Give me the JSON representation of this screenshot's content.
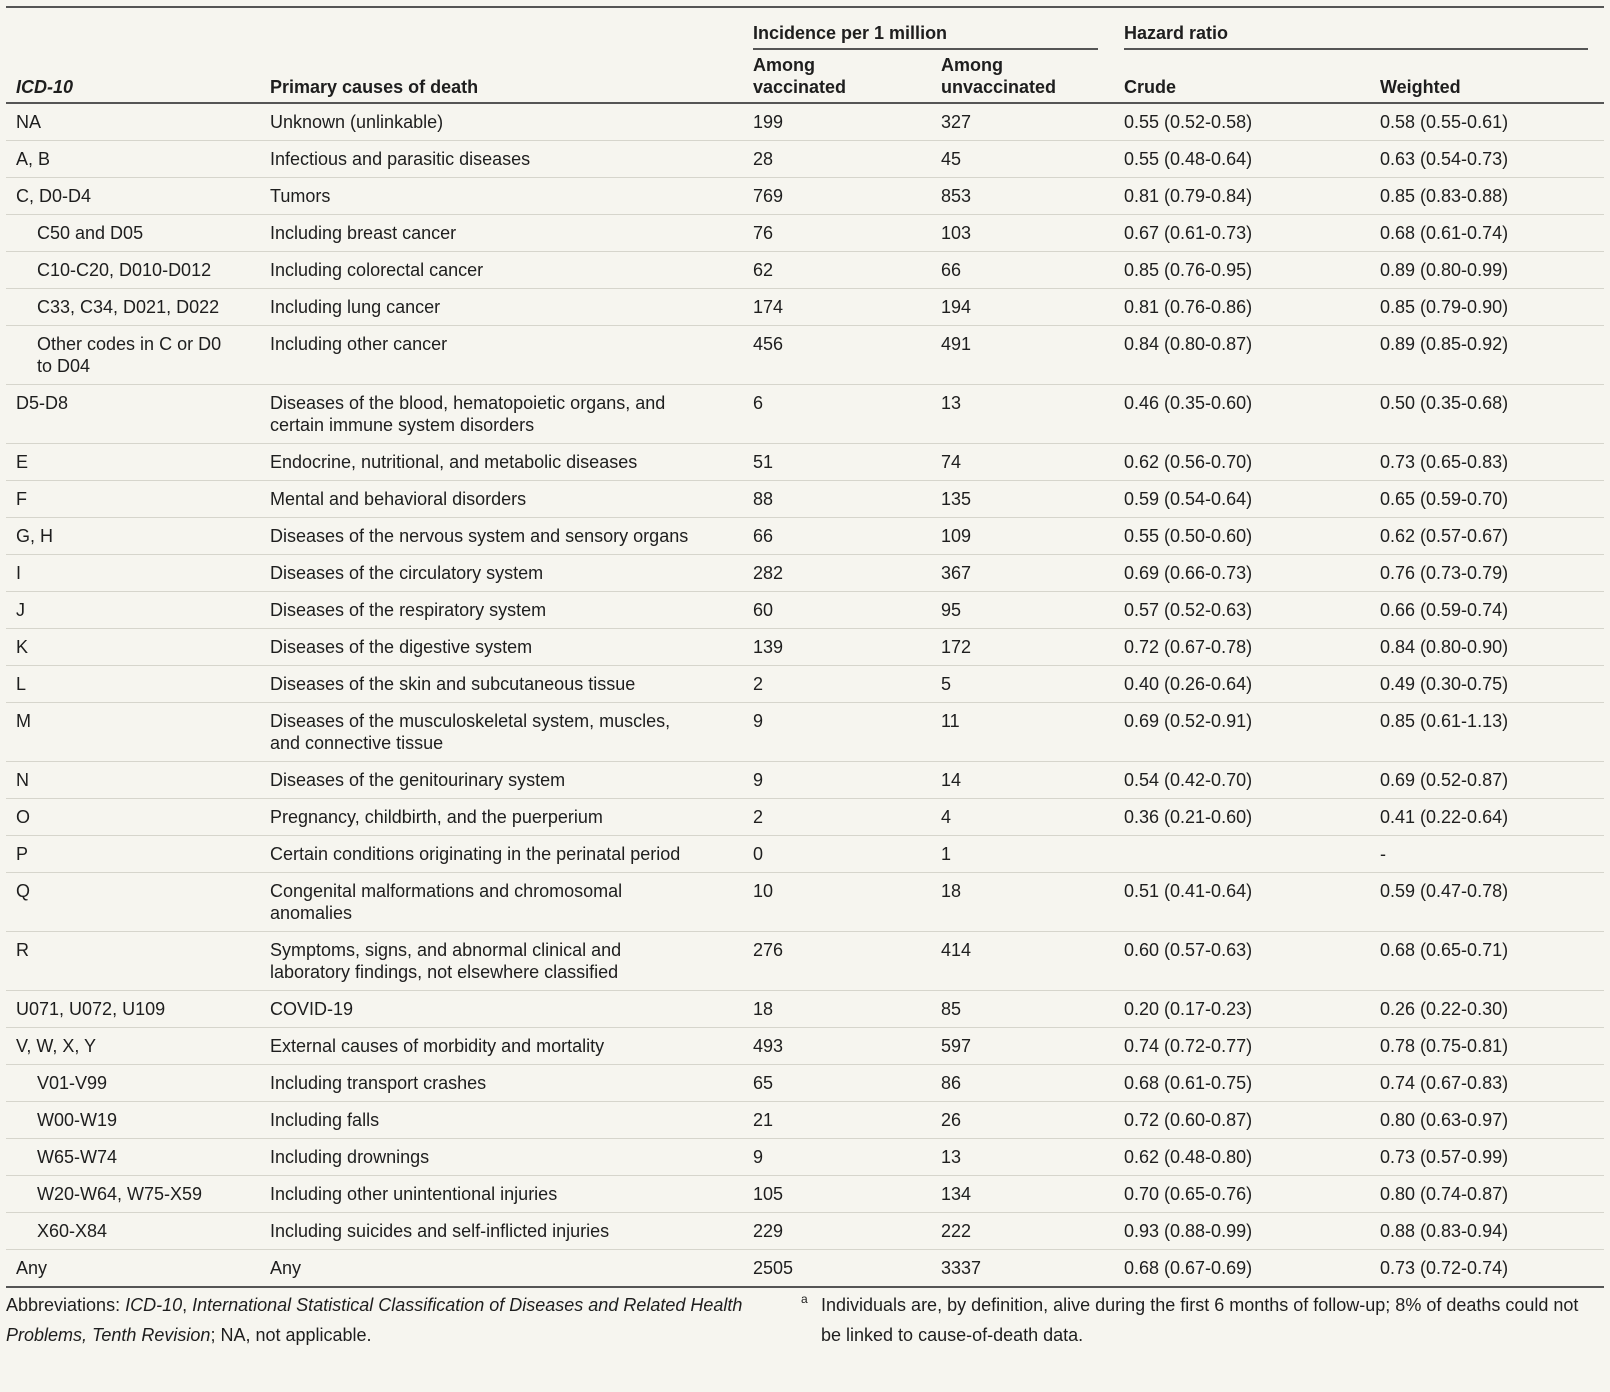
{
  "header": {
    "groups": [
      "Incidence per 1 million",
      "Hazard ratio"
    ],
    "columns": [
      "ICD-10",
      "Primary causes of death",
      "Among vaccinated",
      "Among unvaccinated",
      "Crude",
      "Weighted"
    ]
  },
  "rows": [
    {
      "icd": "NA",
      "cause": "Unknown (unlinkable)",
      "vaccinated": 199,
      "unvaccinated": 327,
      "crude": "0.55 (0.52-0.58)",
      "weighted": "0.58 (0.55-0.61)"
    },
    {
      "icd": "A, B",
      "cause": "Infectious and parasitic diseases",
      "vaccinated": 28,
      "unvaccinated": 45,
      "crude": "0.55 (0.48-0.64)",
      "weighted": "0.63 (0.54-0.73)"
    },
    {
      "icd": "C, D0-D4",
      "cause": "Tumors",
      "vaccinated": 769,
      "unvaccinated": 853,
      "crude": "0.81 (0.79-0.84)",
      "weighted": "0.85 (0.83-0.88)",
      "subrows": [
        {
          "icd": "C50 and D05",
          "cause": "Including breast cancer",
          "vaccinated": 76,
          "unvaccinated": 103,
          "crude": "0.67 (0.61-0.73)",
          "weighted": "0.68 (0.61-0.74)"
        },
        {
          "icd": "C10-C20, D010-D012",
          "cause": "Including colorectal cancer",
          "vaccinated": 62,
          "unvaccinated": 66,
          "crude": "0.85 (0.76-0.95)",
          "weighted": "0.89 (0.80-0.99)"
        },
        {
          "icd": "C33, C34, D021, D022",
          "cause": "Including lung cancer",
          "vaccinated": 174,
          "unvaccinated": 194,
          "crude": "0.81 (0.76-0.86)",
          "weighted": "0.85 (0.79-0.90)"
        },
        {
          "icd": "Other codes in C or D0 to D04",
          "cause": "Including other cancer",
          "vaccinated": 456,
          "unvaccinated": 491,
          "crude": "0.84 (0.80-0.87)",
          "weighted": "0.89 (0.85-0.92)"
        }
      ]
    },
    {
      "icd": "D5-D8",
      "cause": "Diseases of the blood, hematopoietic organs, and certain immune system disorders",
      "vaccinated": 6,
      "unvaccinated": 13,
      "crude": "0.46 (0.35-0.60)",
      "weighted": "0.50 (0.35-0.68)"
    },
    {
      "icd": "E",
      "cause": "Endocrine, nutritional, and metabolic diseases",
      "vaccinated": 51,
      "unvaccinated": 74,
      "crude": "0.62 (0.56-0.70)",
      "weighted": "0.73 (0.65-0.83)"
    },
    {
      "icd": "F",
      "cause": "Mental and behavioral disorders",
      "vaccinated": 88,
      "unvaccinated": 135,
      "crude": "0.59 (0.54-0.64)",
      "weighted": "0.65 (0.59-0.70)"
    },
    {
      "icd": "G, H",
      "cause": "Diseases of the nervous system and sensory organs",
      "vaccinated": 66,
      "unvaccinated": 109,
      "crude": "0.55 (0.50-0.60)",
      "weighted": "0.62 (0.57-0.67)"
    },
    {
      "icd": "I",
      "cause": "Diseases of the circulatory system",
      "vaccinated": 282,
      "unvaccinated": 367,
      "crude": "0.69 (0.66-0.73)",
      "weighted": "0.76 (0.73-0.79)"
    },
    {
      "icd": "J",
      "cause": "Diseases of the respiratory system",
      "vaccinated": 60,
      "unvaccinated": 95,
      "crude": "0.57 (0.52-0.63)",
      "weighted": "0.66 (0.59-0.74)"
    },
    {
      "icd": "K",
      "cause": "Diseases of the digestive system",
      "vaccinated": 139,
      "unvaccinated": 172,
      "crude": "0.72 (0.67-0.78)",
      "weighted": "0.84 (0.80-0.90)"
    },
    {
      "icd": "L",
      "cause": "Diseases of the skin and subcutaneous tissue",
      "vaccinated": 2,
      "unvaccinated": 5,
      "crude": "0.40 (0.26-0.64)",
      "weighted": "0.49 (0.30-0.75)"
    },
    {
      "icd": "M",
      "cause": "Diseases of the musculoskeletal system, muscles, and connective tissue",
      "vaccinated": 9,
      "unvaccinated": 11,
      "crude": "0.69 (0.52-0.91)",
      "weighted": "0.85 (0.61-1.13)"
    },
    {
      "icd": "N",
      "cause": "Diseases of the genitourinary system",
      "vaccinated": 9,
      "unvaccinated": 14,
      "crude": "0.54 (0.42-0.70)",
      "weighted": "0.69 (0.52-0.87)"
    },
    {
      "icd": "O",
      "cause": "Pregnancy, childbirth, and the puerperium",
      "vaccinated": 2,
      "unvaccinated": 4,
      "crude": "0.36 (0.21-0.60)",
      "weighted": "0.41 (0.22-0.64)"
    },
    {
      "icd": "P",
      "cause": "Certain conditions originating in the perinatal period",
      "vaccinated": 0,
      "unvaccinated": 1,
      "crude": null,
      "weighted": "-"
    },
    {
      "icd": "Q",
      "cause": "Congenital malformations and chromosomal anomalies",
      "vaccinated": 10,
      "unvaccinated": 18,
      "crude": "0.51 (0.41-0.64)",
      "weighted": "0.59 (0.47-0.78)"
    },
    {
      "icd": "R",
      "cause": "Symptoms, signs, and abnormal clinical and laboratory findings, not elsewhere classified",
      "vaccinated": 276,
      "unvaccinated": 414,
      "crude": "0.60 (0.57-0.63)",
      "weighted": "0.68 (0.65-0.71)"
    },
    {
      "icd": "U071, U072, U109",
      "cause": "COVID-19",
      "vaccinated": 18,
      "unvaccinated": 85,
      "crude": "0.20 (0.17-0.23)",
      "weighted": "0.26 (0.22-0.30)"
    },
    {
      "icd": "V, W, X, Y",
      "cause": "External causes of morbidity and mortality",
      "vaccinated": 493,
      "unvaccinated": 597,
      "crude": "0.74 (0.72-0.77)",
      "weighted": "0.78 (0.75-0.81)",
      "subrows": [
        {
          "icd": "V01-V99",
          "cause": "Including transport crashes",
          "vaccinated": 65,
          "unvaccinated": 86,
          "crude": "0.68 (0.61-0.75)",
          "weighted": "0.74 (0.67-0.83)"
        },
        {
          "icd": "W00-W19",
          "cause": "Including falls",
          "vaccinated": 21,
          "unvaccinated": 26,
          "crude": "0.72 (0.60-0.87)",
          "weighted": "0.80 (0.63-0.97)"
        },
        {
          "icd": "W65-W74",
          "cause": "Including drownings",
          "vaccinated": 9,
          "unvaccinated": 13,
          "crude": "0.62 (0.48-0.80)",
          "weighted": "0.73 (0.57-0.99)"
        },
        {
          "icd": "W20-W64, W75-X59",
          "cause": "Including other unintentional injuries",
          "vaccinated": 105,
          "unvaccinated": 134,
          "crude": "0.70 (0.65-0.76)",
          "weighted": "0.80 (0.74-0.87)"
        },
        {
          "icd": "X60-X84",
          "cause": "Including suicides and self-inflicted injuries",
          "vaccinated": 229,
          "unvaccinated": 222,
          "crude": "0.93 (0.88-0.99)",
          "weighted": "0.88 (0.83-0.94)"
        }
      ]
    },
    {
      "icd": "Any",
      "cause": "Any",
      "vaccinated": 2505,
      "unvaccinated": 3337,
      "crude": "0.68 (0.67-0.69)",
      "weighted": "0.73 (0.72-0.74)"
    }
  ],
  "footnotes": {
    "abbreviations": [
      "Abbreviations: ",
      "ICD-10",
      ", ",
      "International Statistical Classification of Diseases and Related Health Problems, Tenth Revision",
      "; NA, not applicable."
    ],
    "note": {
      "marker": "a",
      "text": "Individuals are, by definition, alive during the first 6 months of follow-up; 8% of deaths could not be linked to cause-of-death data."
    }
  }
}
